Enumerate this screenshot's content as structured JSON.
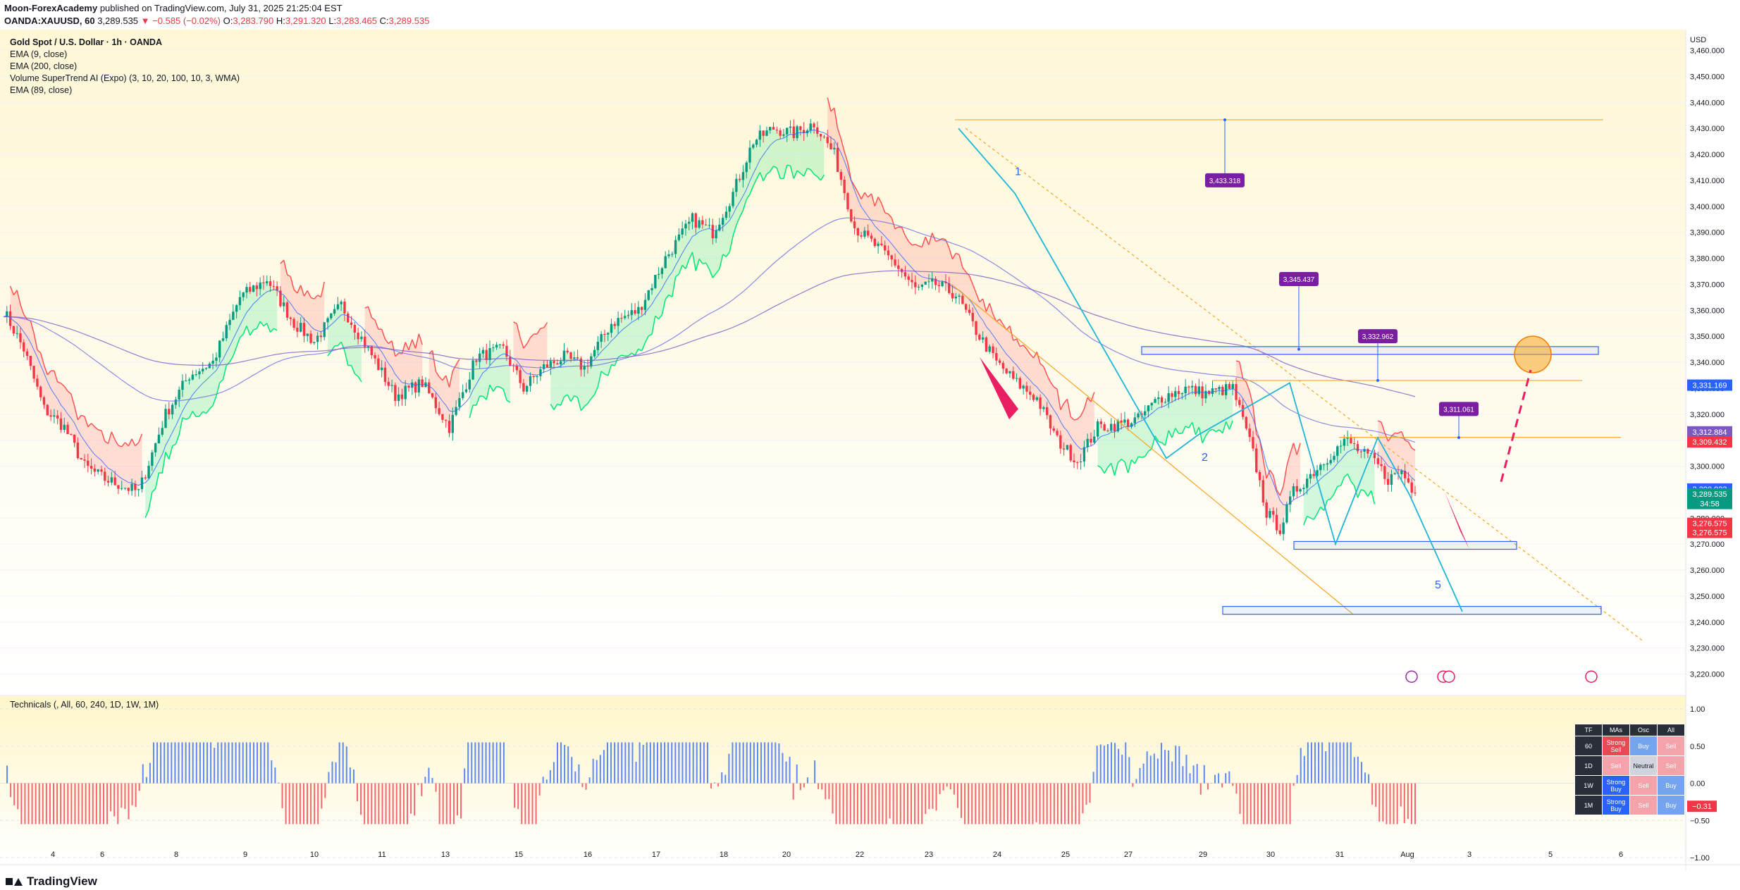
{
  "header": {
    "author": "Moon-ForexAcademy",
    "published": "published on TradingView.com, July 31, 2025 21:25:04 EST",
    "symbol": "OANDA:XAUUSD, 60",
    "price": "3,289.535",
    "change": "▼ −0.585 (−0.02%)",
    "o_label": "O:",
    "o": "3,283.790",
    "h_label": "H:",
    "h": "3,291.320",
    "l_label": "L:",
    "l": "3,283.465",
    "c_label": "C:",
    "c": "3,289.535"
  },
  "legend": {
    "title": "Gold Spot / U.S. Dollar · 1h · OANDA",
    "line1": "EMA (9, close)",
    "line2": "EMA (200, close)",
    "line3": "Volume SuperTrend AI (Expo) (3, 10, 20, 100, 10, 3, WMA)",
    "line4": "EMA (89, close)"
  },
  "technicals": {
    "label": "Technicals (, All, 60, 240, 1D, 1W, 1M)",
    "headers": [
      "TF",
      "MAs",
      "Osc",
      "All"
    ],
    "rows": [
      [
        "60",
        "Strong Sell",
        "Buy",
        "Sell"
      ],
      [
        "1D",
        "Sell",
        "Neutral",
        "Sell"
      ],
      [
        "1W",
        "Strong Buy",
        "Sell",
        "Buy"
      ],
      [
        "1M",
        "Strong Buy",
        "Sell",
        "Buy"
      ]
    ]
  },
  "footer": {
    "brand": "TradingView"
  },
  "colors": {
    "up": "#089981",
    "down": "#f23645",
    "supertrend_up": "#00e676",
    "supertrend_down": "#ff5252",
    "ema": "#6f6fe0",
    "pattern": "#1eb6d6",
    "level": "#f5a623",
    "zone": "#2962ff",
    "callout": "#7b1fa2",
    "arrow": "#e91e63"
  },
  "chart_data": {
    "type": "candlestick",
    "currency": "USD",
    "price_axis": {
      "ylim": [
        3212,
        3468
      ],
      "ticks": [
        3220,
        3230,
        3240,
        3250,
        3260,
        3270,
        3280,
        3300,
        3310,
        3320,
        3330,
        3340,
        3350,
        3360,
        3370,
        3380,
        3390,
        3400,
        3410,
        3420,
        3430,
        3440,
        3450,
        3460
      ],
      "tick_labels": [
        "3,220.000",
        "3,230.000",
        "3,240.000",
        "3,250.000",
        "3,260.000",
        "3,270.000",
        "3,280.000",
        "3,300.000",
        "3,310.000",
        "3,320.000",
        "3,330.000",
        "3,340.000",
        "3,350.000",
        "3,360.000",
        "3,370.000",
        "3,380.000",
        "3,390.000",
        "3,400.000",
        "3,410.000",
        "3,420.000",
        "3,430.000",
        "3,440.000",
        "3,450.000",
        "3,460.000"
      ]
    },
    "time_axis": [
      "4",
      "6",
      "8",
      "9",
      "10",
      "11",
      "13",
      "15",
      "16",
      "17",
      "18",
      "20",
      "22",
      "23",
      "24",
      "25",
      "27",
      "29",
      "30",
      "31",
      "Aug",
      "3",
      "5",
      "6"
    ],
    "price_path": [
      [
        0,
        3360
      ],
      [
        6,
        3345
      ],
      [
        12,
        3322
      ],
      [
        18,
        3315
      ],
      [
        24,
        3300
      ],
      [
        30,
        3295
      ],
      [
        40,
        3290
      ],
      [
        48,
        3320
      ],
      [
        55,
        3335
      ],
      [
        62,
        3340
      ],
      [
        70,
        3365
      ],
      [
        78,
        3372
      ],
      [
        86,
        3355
      ],
      [
        92,
        3348
      ],
      [
        100,
        3362
      ],
      [
        108,
        3345
      ],
      [
        116,
        3327
      ],
      [
        124,
        3332
      ],
      [
        132,
        3315
      ],
      [
        140,
        3342
      ],
      [
        148,
        3345
      ],
      [
        154,
        3330
      ],
      [
        160,
        3338
      ],
      [
        166,
        3342
      ],
      [
        172,
        3338
      ],
      [
        180,
        3355
      ],
      [
        188,
        3360
      ],
      [
        196,
        3380
      ],
      [
        204,
        3395
      ],
      [
        210,
        3390
      ],
      [
        216,
        3405
      ],
      [
        222,
        3425
      ],
      [
        228,
        3430
      ],
      [
        234,
        3428
      ],
      [
        240,
        3432
      ],
      [
        246,
        3420
      ],
      [
        252,
        3392
      ],
      [
        258,
        3385
      ],
      [
        264,
        3378
      ],
      [
        270,
        3368
      ],
      [
        276,
        3370
      ],
      [
        282,
        3366
      ],
      [
        288,
        3352
      ],
      [
        294,
        3340
      ],
      [
        300,
        3332
      ],
      [
        306,
        3326
      ],
      [
        312,
        3310
      ],
      [
        318,
        3302
      ],
      [
        324,
        3315
      ],
      [
        330,
        3316
      ],
      [
        336,
        3318
      ],
      [
        342,
        3326
      ],
      [
        350,
        3330
      ],
      [
        356,
        3328
      ],
      [
        364,
        3330
      ],
      [
        370,
        3305
      ],
      [
        374,
        3282
      ],
      [
        378,
        3276
      ],
      [
        382,
        3290
      ],
      [
        388,
        3298
      ],
      [
        394,
        3306
      ],
      [
        398,
        3310
      ],
      [
        402,
        3305
      ],
      [
        406,
        3302
      ],
      [
        410,
        3295
      ],
      [
        414,
        3298
      ],
      [
        418,
        3289.535
      ]
    ],
    "axis_badges": [
      {
        "label": "Symbol",
        "value": "3,331.169",
        "color": "#2962ff"
      },
      {
        "label": "EMA",
        "value": "3,312.884",
        "color": "#7e57c2"
      },
      {
        "label": "EMA",
        "value": "3,309.432",
        "color": "#f23645"
      },
      {
        "label": "EMA",
        "value": "3,290.923",
        "color": "#2962ff"
      },
      {
        "label": "Price",
        "value": "3,289.535",
        "color": "#089981"
      },
      {
        "label": "Countdown",
        "value": "34:58",
        "color": "#089981"
      },
      {
        "label": "ST",
        "value": "3,276.575",
        "color": "#f23645"
      },
      {
        "label": "ST",
        "value": "3,276.575",
        "color": "#f23645"
      }
    ],
    "annotations": {
      "callouts": [
        "3,433.318",
        "3,345.437",
        "3,332.962",
        "3,311.061"
      ],
      "wave_labels": [
        "1",
        "2",
        "5"
      ],
      "levels": [
        3433.3,
        3332.96,
        3311.06
      ],
      "zones": [
        [
          3343,
          3346
        ],
        [
          3268,
          3271
        ],
        [
          3243,
          3246
        ]
      ]
    },
    "technicals_osc": {
      "ylim": [
        -1,
        1
      ],
      "ticks": [
        1.0,
        0.5,
        0.0,
        -0.5,
        -1.0
      ],
      "tick_labels": [
        "1.00",
        "0.50",
        "0.00",
        "−0.50",
        "−1.00"
      ],
      "current": "−0.31"
    }
  }
}
